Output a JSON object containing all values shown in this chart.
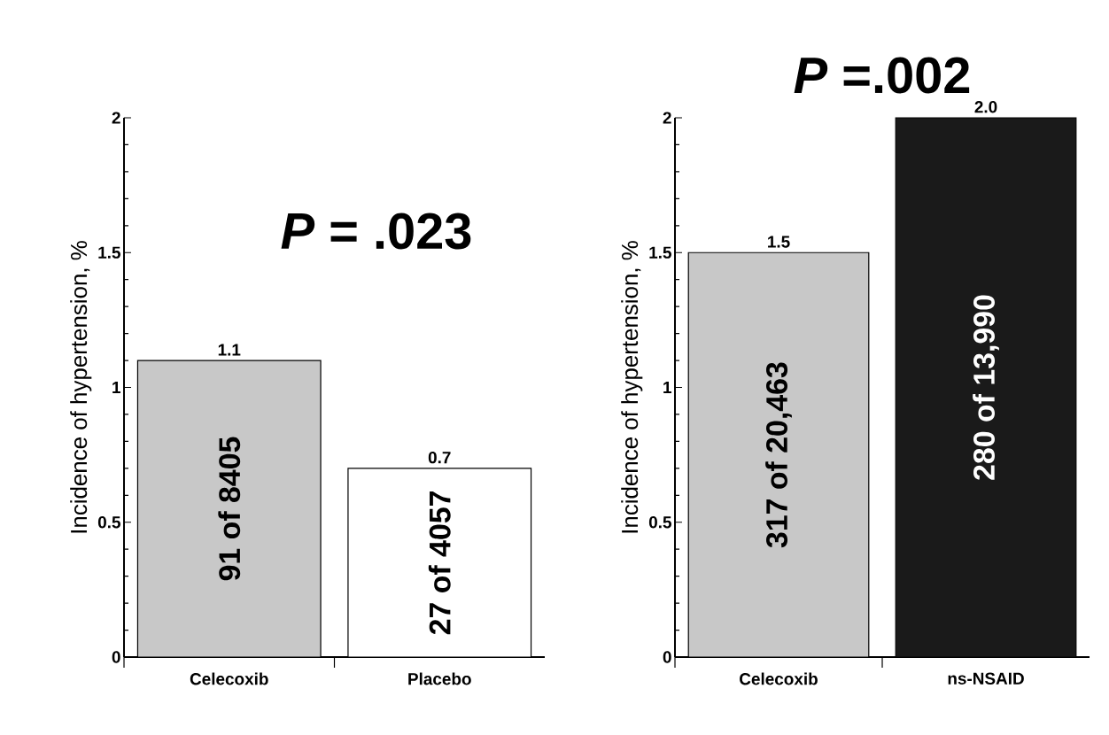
{
  "chart_data": [
    {
      "type": "bar",
      "title": "*P* = .023",
      "ylabel": "Incidence of hypertension, %",
      "categories": [
        "Celecoxib",
        "Placebo"
      ],
      "values": [
        1.1,
        0.7
      ],
      "colors": [
        "#c8c8c8",
        "#ffffff"
      ],
      "value_labels": [
        "1.1",
        "0.7"
      ],
      "annotations": [
        "91 of 8405",
        "27 of 4057"
      ],
      "ylim": [
        0,
        2
      ],
      "yticks": [
        0,
        0.5,
        1,
        1.5,
        2
      ],
      "grid": false
    },
    {
      "type": "bar",
      "title": "*P* =.002",
      "ylabel": "Incidence of hypertension, %",
      "categories": [
        "Celecoxib",
        "ns-NSAID"
      ],
      "values": [
        1.5,
        2.0
      ],
      "colors": [
        "#c8c8c8",
        "#1a1a1a"
      ],
      "value_labels": [
        "1.5",
        "2.0"
      ],
      "annotations": [
        "317 of 20,463",
        "280 of 13,990"
      ],
      "ylim": [
        0,
        2
      ],
      "yticks": [
        0,
        0.5,
        1,
        1.5,
        2
      ],
      "grid": false
    }
  ]
}
